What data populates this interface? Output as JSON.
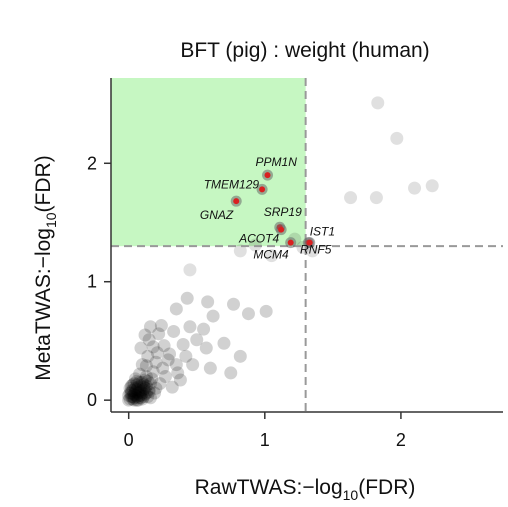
{
  "chart_data": {
    "type": "scatter",
    "title": "BFT (pig) : weight (human)",
    "xlabel": "RawTWAS:−log",
    "ylabel": "MetaTWAS:−log",
    "xlabel_sub": "10",
    "xlabel_tail": "(FDR)",
    "ylabel_sub": "10",
    "ylabel_tail": "(FDR)",
    "xlim": [
      -0.13,
      2.75
    ],
    "ylim": [
      -0.1,
      2.72
    ],
    "xticks": [
      0,
      1,
      2
    ],
    "yticks": [
      0,
      1,
      2
    ],
    "threshold_x": 1.3,
    "threshold_y": 1.3,
    "grid": false,
    "colors": {
      "highlight_region": "#c6f7c2",
      "highlight_point": "#d92020",
      "background_point": "#000000",
      "threshold_line": "#999999"
    },
    "highlight_region": {
      "x": [
        -0.13,
        1.3
      ],
      "y": [
        1.3,
        2.72
      ]
    },
    "highlighted_points": [
      {
        "label": "PPM1N",
        "x": 1.02,
        "y": 1.9
      },
      {
        "label": "TMEM129",
        "x": 0.98,
        "y": 1.78
      },
      {
        "label": "GNAZ",
        "x": 0.79,
        "y": 1.68
      },
      {
        "label": "SRP19",
        "x": 1.11,
        "y": 1.46
      },
      {
        "label": "ACOT4",
        "x": 1.12,
        "y": 1.44
      },
      {
        "label": "MCM4",
        "x": 1.19,
        "y": 1.33
      },
      {
        "label": "IST1",
        "x": 1.32,
        "y": 1.33
      },
      {
        "label": "RNF5",
        "x": 1.33,
        "y": 1.33
      }
    ],
    "background_points": [
      [
        1.83,
        2.51
      ],
      [
        1.97,
        2.21
      ],
      [
        2.23,
        1.81
      ],
      [
        2.1,
        1.79
      ],
      [
        1.63,
        1.71
      ],
      [
        1.82,
        1.71
      ],
      [
        1.28,
        1.29
      ],
      [
        1.22,
        1.36
      ],
      [
        1.35,
        1.26
      ],
      [
        0.82,
        1.26
      ],
      [
        0.93,
        1.31
      ],
      [
        1.05,
        1.22
      ],
      [
        0.45,
        1.1
      ],
      [
        0.43,
        0.86
      ],
      [
        0.35,
        0.77
      ],
      [
        0.58,
        0.83
      ],
      [
        0.77,
        0.81
      ],
      [
        0.88,
        0.73
      ],
      [
        1.01,
        0.75
      ],
      [
        0.62,
        0.71
      ],
      [
        0.55,
        0.6
      ],
      [
        0.45,
        0.62
      ],
      [
        0.33,
        0.58
      ],
      [
        0.22,
        0.56
      ],
      [
        0.4,
        0.47
      ],
      [
        0.57,
        0.44
      ],
      [
        0.7,
        0.48
      ],
      [
        0.82,
        0.37
      ],
      [
        0.75,
        0.23
      ],
      [
        0.3,
        0.39
      ],
      [
        0.47,
        0.3
      ],
      [
        0.6,
        0.27
      ],
      [
        0.18,
        0.45
      ],
      [
        0.26,
        0.46
      ],
      [
        0.35,
        0.3
      ],
      [
        0.16,
        0.62
      ],
      [
        0.12,
        0.55
      ],
      [
        0.2,
        0.32
      ],
      [
        0.09,
        0.44
      ],
      [
        0.14,
        0.37
      ],
      [
        0.27,
        0.2
      ],
      [
        0.38,
        0.17
      ],
      [
        0.18,
        0.24
      ],
      [
        0.1,
        0.3
      ],
      [
        0.13,
        0.29
      ],
      [
        0.23,
        0.14
      ],
      [
        0.32,
        0.11
      ],
      [
        0.17,
        0.18
      ],
      [
        0.2,
        0.1
      ],
      [
        0.08,
        0.22
      ],
      [
        0.13,
        0.2
      ],
      [
        0.06,
        0.16
      ],
      [
        0.11,
        0.13
      ],
      [
        0.15,
        0.09
      ],
      [
        0.05,
        0.1
      ],
      [
        0.09,
        0.07
      ],
      [
        0.12,
        0.05
      ],
      [
        0.04,
        0.05
      ],
      [
        0.07,
        0.11
      ],
      [
        0.03,
        0.08
      ],
      [
        0.02,
        0.03
      ],
      [
        0.06,
        0.03
      ],
      [
        0.09,
        0.02
      ],
      [
        0.01,
        0.01
      ],
      [
        0.04,
        0.0
      ],
      [
        0.08,
        0.04
      ],
      [
        0.11,
        0.09
      ],
      [
        0.14,
        0.03
      ],
      [
        0.03,
        0.13
      ],
      [
        0.1,
        0.15
      ],
      [
        0.07,
        0.0
      ],
      [
        0.05,
        0.07
      ],
      [
        0.13,
        0.12
      ],
      [
        0.16,
        0.14
      ],
      [
        0.02,
        0.06
      ],
      [
        0.1,
        0.01
      ],
      [
        0.06,
        0.09
      ],
      [
        0.0,
        0.04
      ],
      [
        0.04,
        0.02
      ],
      [
        0.08,
        0.08
      ],
      [
        0.12,
        0.17
      ],
      [
        0.15,
        0.07
      ],
      [
        0.19,
        0.06
      ],
      [
        0.05,
        0.18
      ],
      [
        0.01,
        0.1
      ],
      [
        0.09,
        0.12
      ],
      [
        0.03,
        0.01
      ],
      [
        0.07,
        0.06
      ],
      [
        0.11,
        0.03
      ],
      [
        0.02,
        0.12
      ],
      [
        0.14,
        0.16
      ],
      [
        0.06,
        0.13
      ],
      [
        0.1,
        0.06
      ],
      [
        0.0,
        0.0
      ],
      [
        0.05,
        0.04
      ],
      [
        0.08,
        0.15
      ],
      [
        0.12,
        0.1
      ],
      [
        0.03,
        0.03
      ],
      [
        0.16,
        0.02
      ],
      [
        0.04,
        0.14
      ],
      [
        0.09,
        0.04
      ],
      [
        0.13,
        0.06
      ],
      [
        0.07,
        0.02
      ],
      [
        0.02,
        0.08
      ],
      [
        0.11,
        0.11
      ],
      [
        0.06,
        0.0
      ],
      [
        0.01,
        0.06
      ],
      [
        0.25,
        0.27
      ],
      [
        0.29,
        0.34
      ],
      [
        0.21,
        0.4
      ],
      [
        0.36,
        0.23
      ],
      [
        0.42,
        0.37
      ],
      [
        0.5,
        0.51
      ],
      [
        0.15,
        0.51
      ],
      [
        0.24,
        0.63
      ]
    ]
  }
}
